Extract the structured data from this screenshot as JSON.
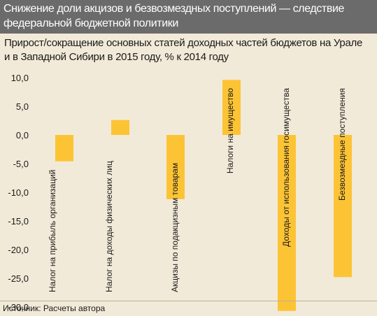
{
  "header": {
    "title": "Снижение доли акцизов и безвозмездных поступлений — следствие федеральной бюджетной политики"
  },
  "subtitle": "Прирост/сокращение основных статей доходных частей бюджетов на Урале и в Западной Сибири в 2015 году, % к 2014 году",
  "source": "Источник: Расчеты автора",
  "colors": {
    "bar": "#fcc435",
    "header_bg": "#6b6b6b",
    "background": "#f2ead8"
  },
  "chart_data": {
    "type": "bar",
    "title": "",
    "xlabel": "",
    "ylabel": "",
    "ylim": [
      -32.5,
      12.5
    ],
    "yticks": [
      10,
      5,
      0,
      -5,
      -10,
      -15,
      -20,
      -25,
      -30
    ],
    "ytick_labels": [
      "10,0",
      "5,0",
      "0,0",
      "-5,0",
      "-10,0",
      "-15,0",
      "-20,0",
      "-25,0",
      "-30,0"
    ],
    "grid": false,
    "legend": "none",
    "categories": [
      "Налог на прибыль организаций",
      "Налог на доходы физических лиц",
      "Акцизы по подакцизным товарам",
      "Налоги на имущество",
      "Доходы от использования госимущества",
      "Безвозмездные поступления"
    ],
    "values": [
      -4.6,
      2.6,
      -11.2,
      9.6,
      -30.7,
      -24.8
    ]
  }
}
